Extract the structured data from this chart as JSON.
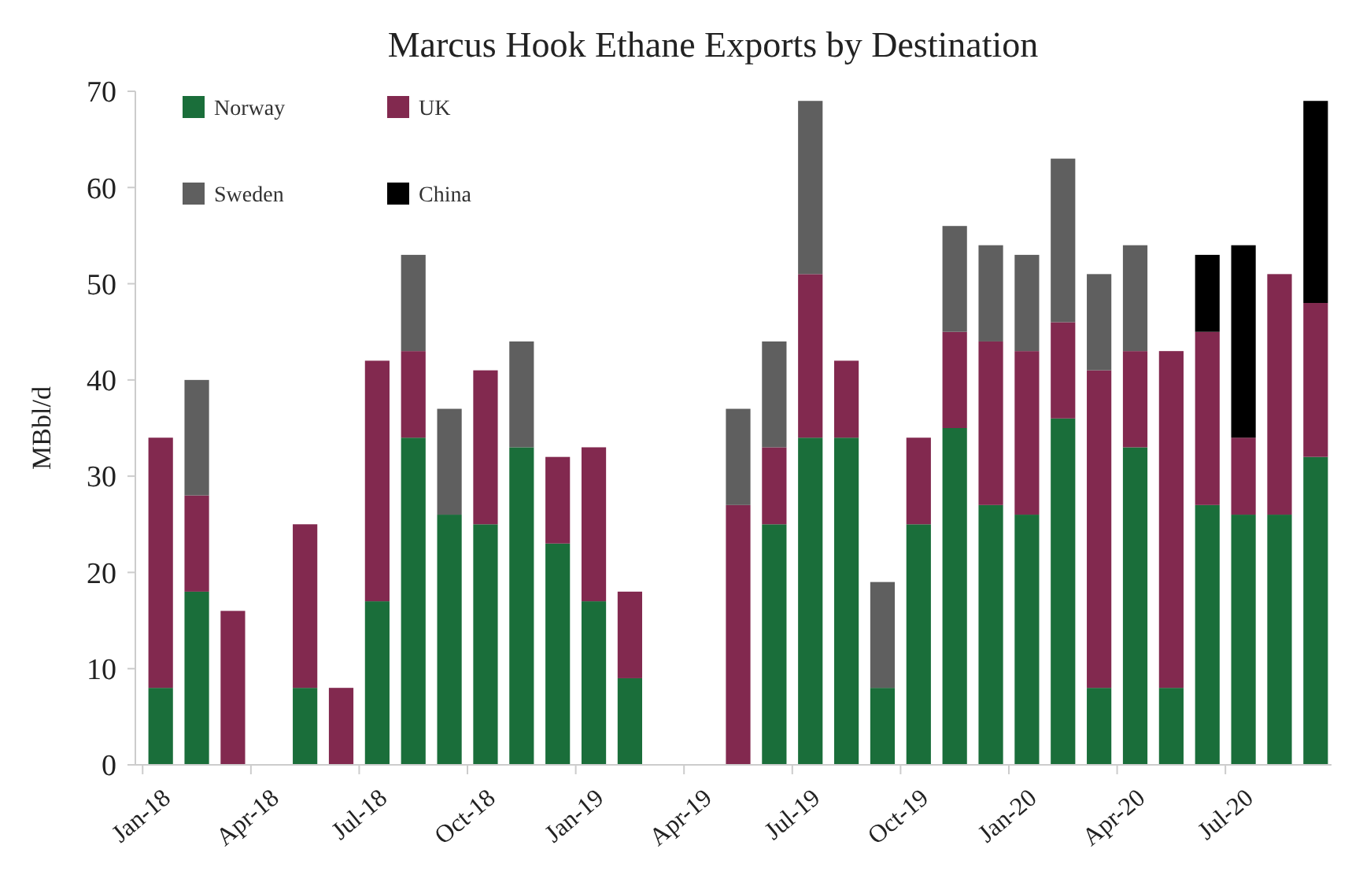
{
  "chart_data": {
    "type": "bar",
    "title": "Marcus Hook Ethane Exports by Destination",
    "ylabel": "MBbl/d",
    "categories": [
      "Jan-18",
      null,
      null,
      "Apr-18",
      null,
      null,
      "Jul-18",
      null,
      null,
      "Oct-18",
      null,
      null,
      "Jan-19",
      null,
      null,
      "Apr-19",
      null,
      null,
      "Jul-19",
      null,
      null,
      "Oct-19",
      null,
      null,
      "Jan-20",
      null,
      null,
      "Apr-20",
      null,
      null,
      "Jul-20",
      null,
      null
    ],
    "series": [
      {
        "name": "Norway",
        "color": "#1a6e3a",
        "values": [
          8,
          18,
          0,
          0,
          8,
          0,
          17,
          34,
          26,
          25,
          33,
          23,
          17,
          9,
          0,
          0,
          0,
          25,
          34,
          34,
          8,
          25,
          35,
          27,
          26,
          36,
          8,
          33,
          8,
          27,
          26,
          26,
          32
        ]
      },
      {
        "name": "UK",
        "color": "#82294f",
        "values": [
          26,
          10,
          16,
          0,
          17,
          8,
          25,
          9,
          0,
          16,
          0,
          9,
          16,
          9,
          0,
          0,
          27,
          8,
          17,
          8,
          0,
          9,
          10,
          17,
          17,
          10,
          33,
          10,
          35,
          18,
          8,
          25,
          16
        ]
      },
      {
        "name": "Sweden",
        "color": "#5f5f5f",
        "values": [
          0,
          12,
          0,
          0,
          0,
          0,
          0,
          10,
          11,
          0,
          11,
          0,
          0,
          0,
          0,
          0,
          10,
          11,
          18,
          0,
          11,
          0,
          11,
          10,
          10,
          17,
          10,
          11,
          0,
          0,
          0,
          0,
          0
        ]
      },
      {
        "name": "China",
        "color": "#000000",
        "values": [
          0,
          0,
          0,
          0,
          0,
          0,
          0,
          0,
          0,
          0,
          0,
          0,
          0,
          0,
          0,
          0,
          0,
          0,
          0,
          0,
          0,
          0,
          0,
          0,
          0,
          0,
          0,
          0,
          0,
          8,
          20,
          0,
          21
        ]
      }
    ],
    "stacked": true,
    "ylim": [
      0,
      70
    ],
    "yticks": [
      0,
      10,
      20,
      30,
      40,
      50,
      60,
      70
    ],
    "grid": false,
    "legend": "top left"
  }
}
